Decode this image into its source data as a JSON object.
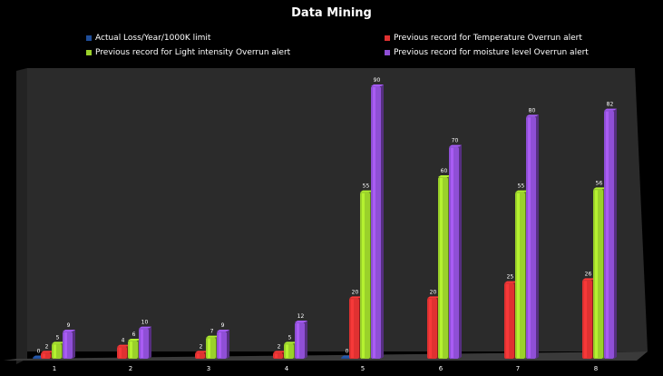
{
  "chart_data": {
    "type": "bar",
    "title": "Data Mining",
    "categories": [
      "1",
      "2",
      "3",
      "4",
      "5",
      "6",
      "7",
      "8"
    ],
    "series": [
      {
        "name": "Actual Loss/Year/1000K limit",
        "color": "#1f4e9a",
        "values": [
          0,
          null,
          null,
          null,
          0,
          null,
          null,
          null
        ]
      },
      {
        "name": "Previous record for Temperature Overrun alert",
        "color": "#e03131",
        "values": [
          2,
          4,
          2,
          2,
          20,
          20,
          25,
          26
        ]
      },
      {
        "name": "Previous record for Light intensity Overrun alert",
        "color": "#9ad12a",
        "values": [
          5,
          6,
          7,
          5,
          55,
          60,
          55,
          56
        ]
      },
      {
        "name": "Previous record for moisture level Overrun alert",
        "color": "#8f4fd6",
        "values": [
          9,
          10,
          9,
          12,
          90,
          70,
          80,
          82
        ]
      }
    ],
    "ylim": [
      0,
      90
    ],
    "grid": false,
    "legend_position": "top"
  }
}
